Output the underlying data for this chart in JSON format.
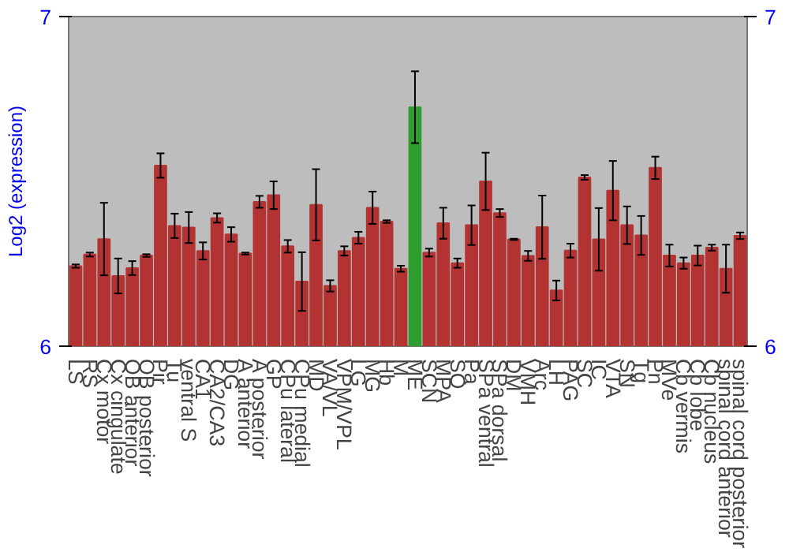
{
  "chart_data": {
    "type": "bar",
    "ylabel": "Log2 (expression)",
    "categories": [
      "LS",
      "RS",
      "Cx motor",
      "Cx cingulate",
      "OB anterior",
      "OB posterior",
      "Pir",
      "Tu",
      "ventral S",
      "CA1",
      "CA2/CA3",
      "DG",
      "A anterior",
      "A posterior",
      "GP",
      "CPu lateral",
      "CPu medial",
      "MD",
      "VA/VL",
      "VPM/VPL",
      "LG",
      "MG",
      "Hb",
      "M",
      "ME",
      "SCN",
      "MPA",
      "SO",
      "Pa",
      "SPa ventral",
      "SPa dorsal",
      "DM",
      "VMH",
      "Arc",
      "LH",
      "PAG",
      "SC",
      "IC",
      "VTA",
      "SN",
      "Tg",
      "Pn",
      "MVe",
      "Cb vermis",
      "Cb lobe",
      "Cb nucleus",
      "spinal cord anterior",
      "spinal cord posterior"
    ],
    "values": [
      6.243,
      6.278,
      6.325,
      6.213,
      6.237,
      6.275,
      6.548,
      6.365,
      6.36,
      6.289,
      6.389,
      6.339,
      6.281,
      6.438,
      6.458,
      6.303,
      6.196,
      6.429,
      6.183,
      6.289,
      6.329,
      6.42,
      6.378,
      6.235,
      6.725,
      6.284,
      6.373,
      6.252,
      6.367,
      6.5,
      6.404,
      6.324,
      6.274,
      6.361,
      6.169,
      6.29,
      6.512,
      6.324,
      6.472,
      6.367,
      6.336,
      6.541,
      6.275,
      6.252,
      6.275,
      6.299,
      6.235,
      6.335
    ],
    "errors": [
      0.005,
      0.006,
      0.11,
      0.053,
      0.021,
      0.004,
      0.037,
      0.037,
      0.047,
      0.026,
      0.014,
      0.022,
      0.003,
      0.018,
      0.042,
      0.019,
      0.089,
      0.108,
      0.017,
      0.014,
      0.018,
      0.049,
      0.004,
      0.009,
      0.109,
      0.012,
      0.047,
      0.014,
      0.06,
      0.087,
      0.012,
      0.002,
      0.015,
      0.096,
      0.03,
      0.021,
      0.007,
      0.095,
      0.09,
      0.057,
      0.059,
      0.034,
      0.033,
      0.017,
      0.03,
      0.009,
      0.073,
      0.01
    ],
    "colors": [
      "#b33333",
      "#b33333",
      "#b33333",
      "#b33333",
      "#b33333",
      "#b33333",
      "#b33333",
      "#b33333",
      "#b33333",
      "#b33333",
      "#b33333",
      "#b33333",
      "#b33333",
      "#b33333",
      "#b33333",
      "#b33333",
      "#b33333",
      "#b33333",
      "#b33333",
      "#b33333",
      "#b33333",
      "#b33333",
      "#b33333",
      "#b33333",
      "#2e9e2e",
      "#b33333",
      "#b33333",
      "#b33333",
      "#b33333",
      "#b33333",
      "#b33333",
      "#b33333",
      "#b33333",
      "#b33333",
      "#b33333",
      "#b33333",
      "#b33333",
      "#b33333",
      "#b33333",
      "#b33333",
      "#b33333",
      "#b33333",
      "#b33333",
      "#b33333",
      "#b33333",
      "#b33333",
      "#b33333",
      "#b33333"
    ],
    "ylim": [
      6,
      7
    ],
    "yticks": [
      6,
      7
    ],
    "y2lim": [
      6,
      7
    ],
    "y2ticks": [
      6,
      7
    ],
    "grid": false
  }
}
